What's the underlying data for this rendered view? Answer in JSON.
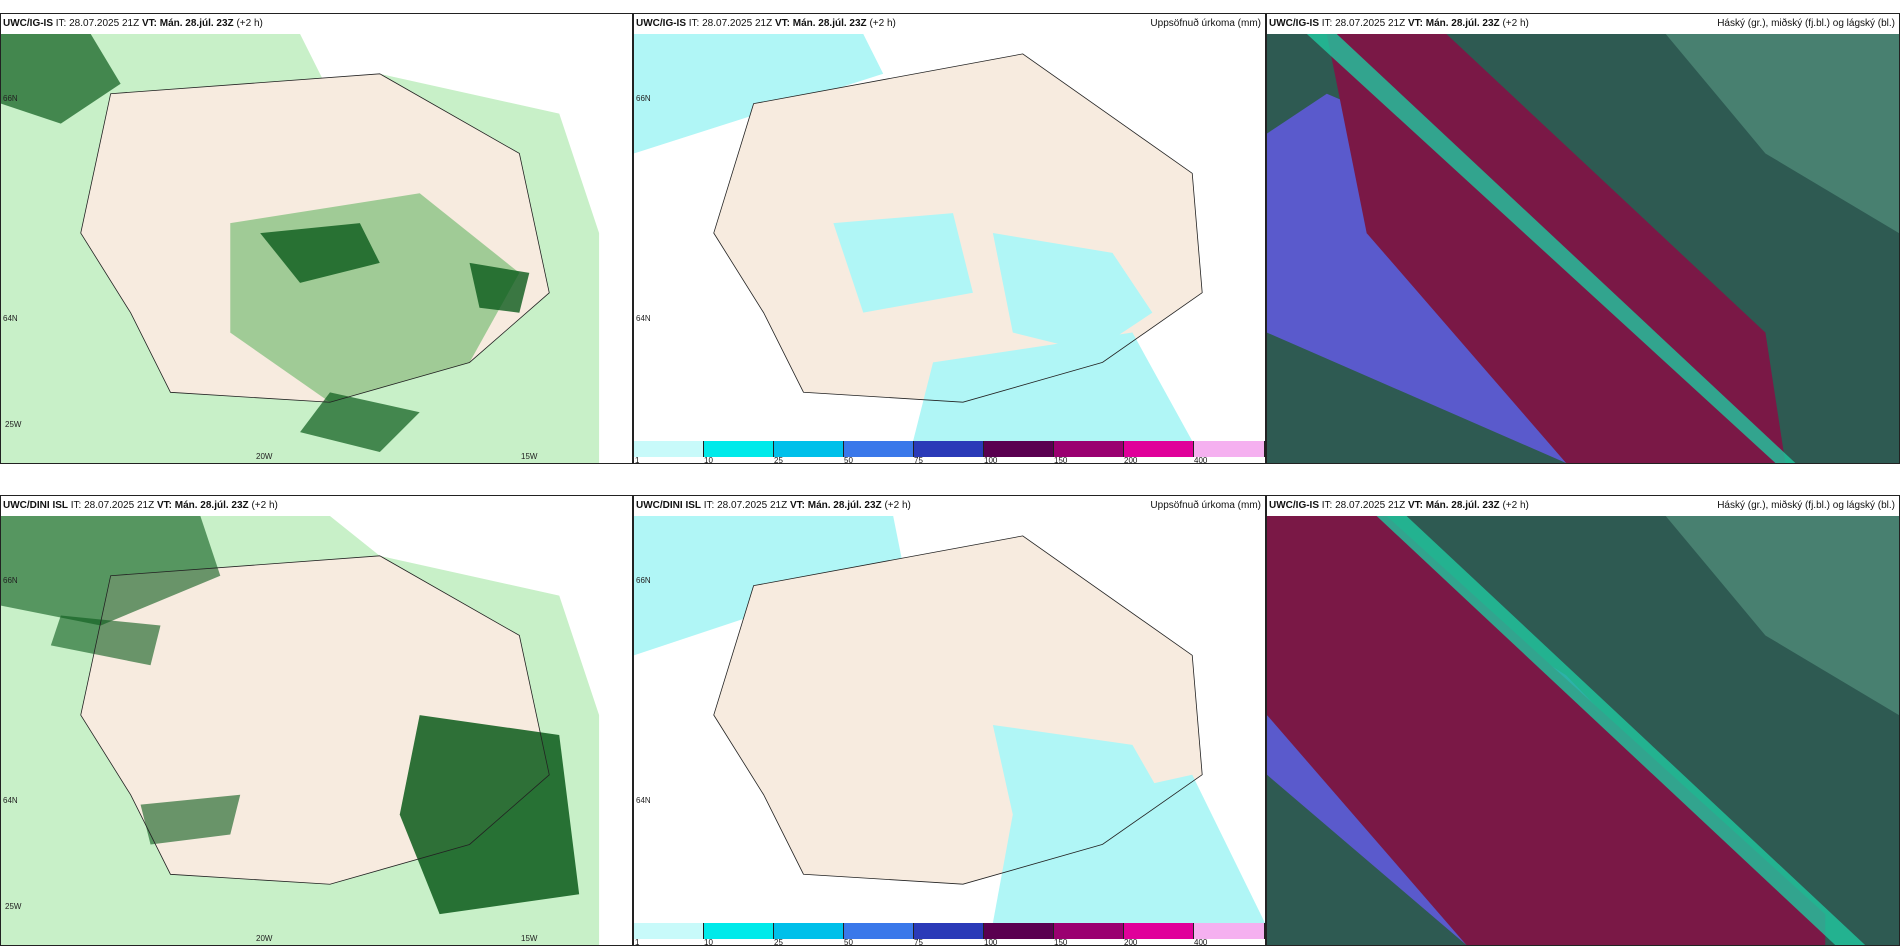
{
  "panels": [
    {
      "model": "UWC/IG-IS",
      "it_label": "IT:",
      "it": "28.07.2025 21Z",
      "vt_label": "VT:",
      "vt": "Mán. 28.júl. 23Z",
      "offset": "(+2 h)",
      "right": "",
      "ticks": [
        "66N",
        "64N",
        "25W",
        "20W",
        "15W"
      ]
    },
    {
      "model": "UWC/IG-IS",
      "it_label": "IT:",
      "it": "28.07.2025 21Z",
      "vt_label": "VT:",
      "vt": "Mán. 28.júl. 23Z",
      "offset": "(+2 h)",
      "right": "Uppsöfnuð úrkoma (mm)",
      "ticks": [
        "66N",
        "64N"
      ]
    },
    {
      "model": "UWC/IG-IS",
      "it_label": "IT:",
      "it": "28.07.2025 21Z",
      "vt_label": "VT:",
      "vt": "Mán. 28.júl. 23Z",
      "offset": "(+2 h)",
      "right": "Háský (gr.), miðský (fj.bl.) og lágský (bl.)",
      "ticks": []
    },
    {
      "model": "UWC/DINI ISL",
      "it_label": "IT:",
      "it": "28.07.2025 21Z",
      "vt_label": "VT:",
      "vt": "Mán. 28.júl. 23Z",
      "offset": "(+2 h)",
      "right": "",
      "ticks": [
        "66N",
        "64N",
        "25W",
        "20W",
        "15W"
      ]
    },
    {
      "model": "UWC/DINI ISL",
      "it_label": "IT:",
      "it": "28.07.2025 21Z",
      "vt_label": "VT:",
      "vt": "Mán. 28.júl. 23Z",
      "offset": "(+2 h)",
      "right": "Uppsöfnuð úrkoma (mm)",
      "ticks": [
        "66N",
        "64N"
      ]
    },
    {
      "model": "UWC/IG-IS",
      "it_label": "IT:",
      "it": "28.07.2025 21Z",
      "vt_label": "VT:",
      "vt": "Mán. 28.júl. 23Z",
      "offset": "(+2 h)",
      "right": "Háský (gr.), miðský (fj.bl.) og lágský (bl.)",
      "ticks": []
    }
  ],
  "legend": {
    "labels": [
      "1",
      "10",
      "25",
      "50",
      "75",
      "100",
      "150",
      "200",
      "400"
    ],
    "colors": [
      "#c8fafa",
      "#00eaea",
      "#00c0ea",
      "#3a78ea",
      "#2a3ab8",
      "#5a0050",
      "#9a0070",
      "#e0009a",
      "#f5b0f0"
    ]
  },
  "colors": {
    "land": "#f7ebdf",
    "light_precip": "#b0f6f6",
    "green_light": "#c8f0c8",
    "green_mid": "#5ab05a",
    "green_dark": "#0a5a1a",
    "cloud_high": "#7a1846",
    "cloud_mid": "#5a5acc",
    "cloud_bg": "#2e5a52"
  }
}
